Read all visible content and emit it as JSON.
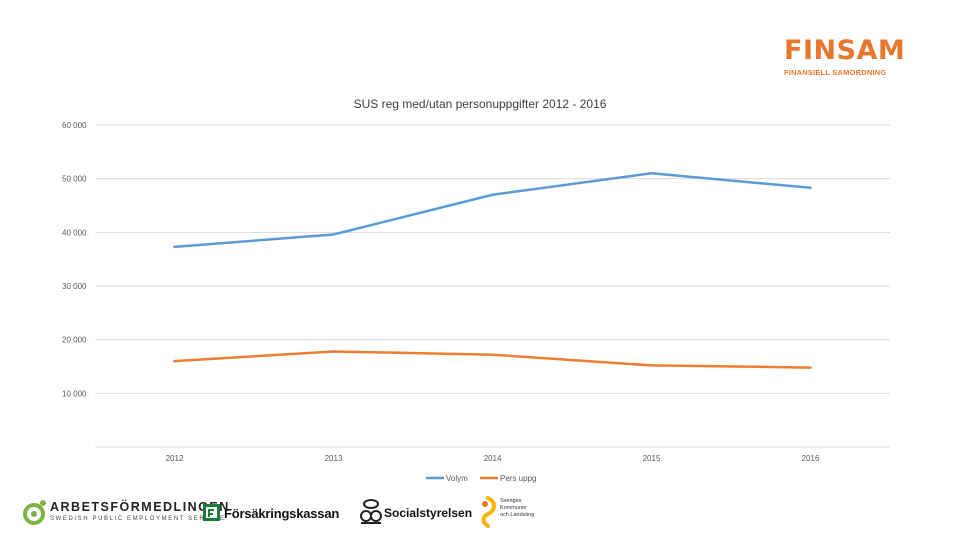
{
  "brand": {
    "name": "FINSAM",
    "subtitle": "FINANSIELL SAMORDNING",
    "color": "#e8772e"
  },
  "chart_data": {
    "type": "line",
    "title": "SUS reg med/utan personuppgifter 2012 - 2016",
    "categories": [
      "2012",
      "2013",
      "2014",
      "2015",
      "2016"
    ],
    "series": [
      {
        "name": "Volym",
        "color": "#5b9bd5",
        "values": [
          37300,
          39600,
          47000,
          51000,
          48300
        ]
      },
      {
        "name": "Pers uppg",
        "color": "#ed7d31",
        "values": [
          16000,
          17800,
          17200,
          15200,
          14800
        ]
      }
    ],
    "ylim": [
      0,
      60000
    ],
    "yticks": [
      10000,
      20000,
      30000,
      40000,
      50000,
      60000
    ],
    "ytick_labels": [
      "10 000",
      "20 000",
      "30 000",
      "40 000",
      "50 000",
      "60 000"
    ],
    "xlabel": "",
    "ylabel": "",
    "grid": true,
    "legend_position": "bottom"
  },
  "logos": {
    "arbetsformedlingen": {
      "name": "ARBETSFÖRMEDLINGEN",
      "sub": "SWEDISH PUBLIC EMPLOYMENT SERVICE"
    },
    "forsakringskassan": {
      "name": "Försäkringskassan"
    },
    "socialstyrelsen": {
      "name": "Socialstyrelsen"
    },
    "skl": {
      "line1": "Sveriges",
      "line2": "Kommuner",
      "line3": "och Landsting"
    }
  }
}
